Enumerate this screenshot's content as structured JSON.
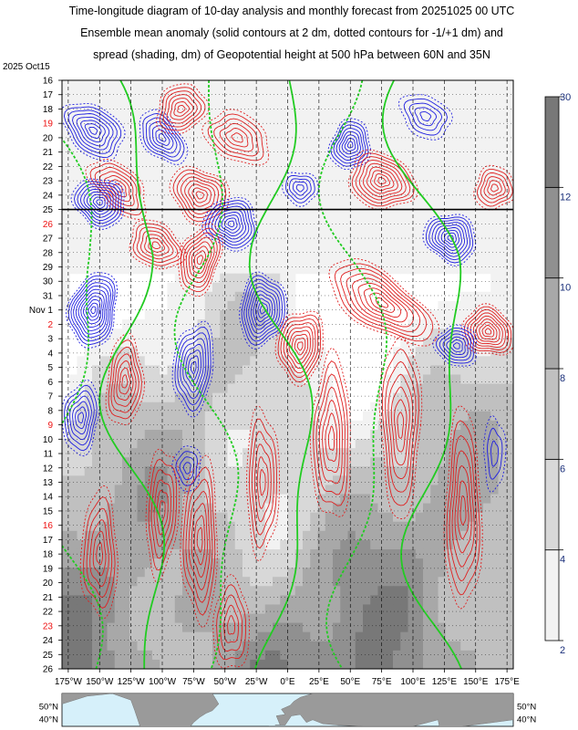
{
  "title_lines": [
    "Time-longitude diagram of 10-day analysis and monthly forecast from 20251025 00 UTC",
    "Ensemble mean anomaly (solid contours at 2 dm, dotted contours for -1/+1 dm) and",
    "spread (shading, dm) of Geopotential height at 500 hPa between 60N and 35N"
  ],
  "chart_data": {
    "type": "heatmap",
    "start_label": "2025 Oct15",
    "analysis_forecast_split": "25",
    "y_ticks": [
      {
        "label": "16",
        "red": false
      },
      {
        "label": "17",
        "red": false
      },
      {
        "label": "18",
        "red": false
      },
      {
        "label": "19",
        "red": true
      },
      {
        "label": "20",
        "red": false
      },
      {
        "label": "21",
        "red": false
      },
      {
        "label": "22",
        "red": false
      },
      {
        "label": "23",
        "red": false
      },
      {
        "label": "24",
        "red": false
      },
      {
        "label": "25",
        "red": false
      },
      {
        "label": "26",
        "red": true
      },
      {
        "label": "27",
        "red": false
      },
      {
        "label": "28",
        "red": false
      },
      {
        "label": "29",
        "red": false
      },
      {
        "label": "30",
        "red": false
      },
      {
        "label": "31",
        "red": false
      },
      {
        "label": "Nov 1",
        "red": false
      },
      {
        "label": "2",
        "red": true
      },
      {
        "label": "3",
        "red": false
      },
      {
        "label": "4",
        "red": false
      },
      {
        "label": "5",
        "red": false
      },
      {
        "label": "6",
        "red": false
      },
      {
        "label": "7",
        "red": false
      },
      {
        "label": "8",
        "red": false
      },
      {
        "label": "9",
        "red": true
      },
      {
        "label": "10",
        "red": false
      },
      {
        "label": "11",
        "red": false
      },
      {
        "label": "12",
        "red": false
      },
      {
        "label": "13",
        "red": false
      },
      {
        "label": "14",
        "red": false
      },
      {
        "label": "15",
        "red": false
      },
      {
        "label": "16",
        "red": true
      },
      {
        "label": "17",
        "red": false
      },
      {
        "label": "18",
        "red": false
      },
      {
        "label": "19",
        "red": false
      },
      {
        "label": "20",
        "red": false
      },
      {
        "label": "21",
        "red": false
      },
      {
        "label": "22",
        "red": false
      },
      {
        "label": "23",
        "red": true
      },
      {
        "label": "24",
        "red": false
      },
      {
        "label": "25",
        "red": false
      },
      {
        "label": "26",
        "red": false
      }
    ],
    "x_ticks": [
      "175°W",
      "150°W",
      "125°W",
      "100°W",
      "75°W",
      "50°W",
      "25°W",
      "0°E",
      "25°E",
      "50°E",
      "75°E",
      "100°E",
      "125°E",
      "150°E",
      "175°E"
    ],
    "x_values": [
      -175,
      -150,
      -125,
      -100,
      -75,
      -50,
      -25,
      0,
      25,
      50,
      75,
      100,
      125,
      150,
      175
    ],
    "colorbar": {
      "ticks": [
        2,
        4,
        6,
        8,
        10,
        12,
        30
      ],
      "colors": [
        "#f2f2f2",
        "#d8d8d8",
        "#c0c0c0",
        "#a8a8a8",
        "#909090",
        "#787878"
      ]
    },
    "contour_colors": {
      "positive": "#e02020",
      "negative": "#2020e0",
      "zero": "#22cc22"
    },
    "map_lat_labels": [
      "50°N",
      "40°N"
    ]
  }
}
